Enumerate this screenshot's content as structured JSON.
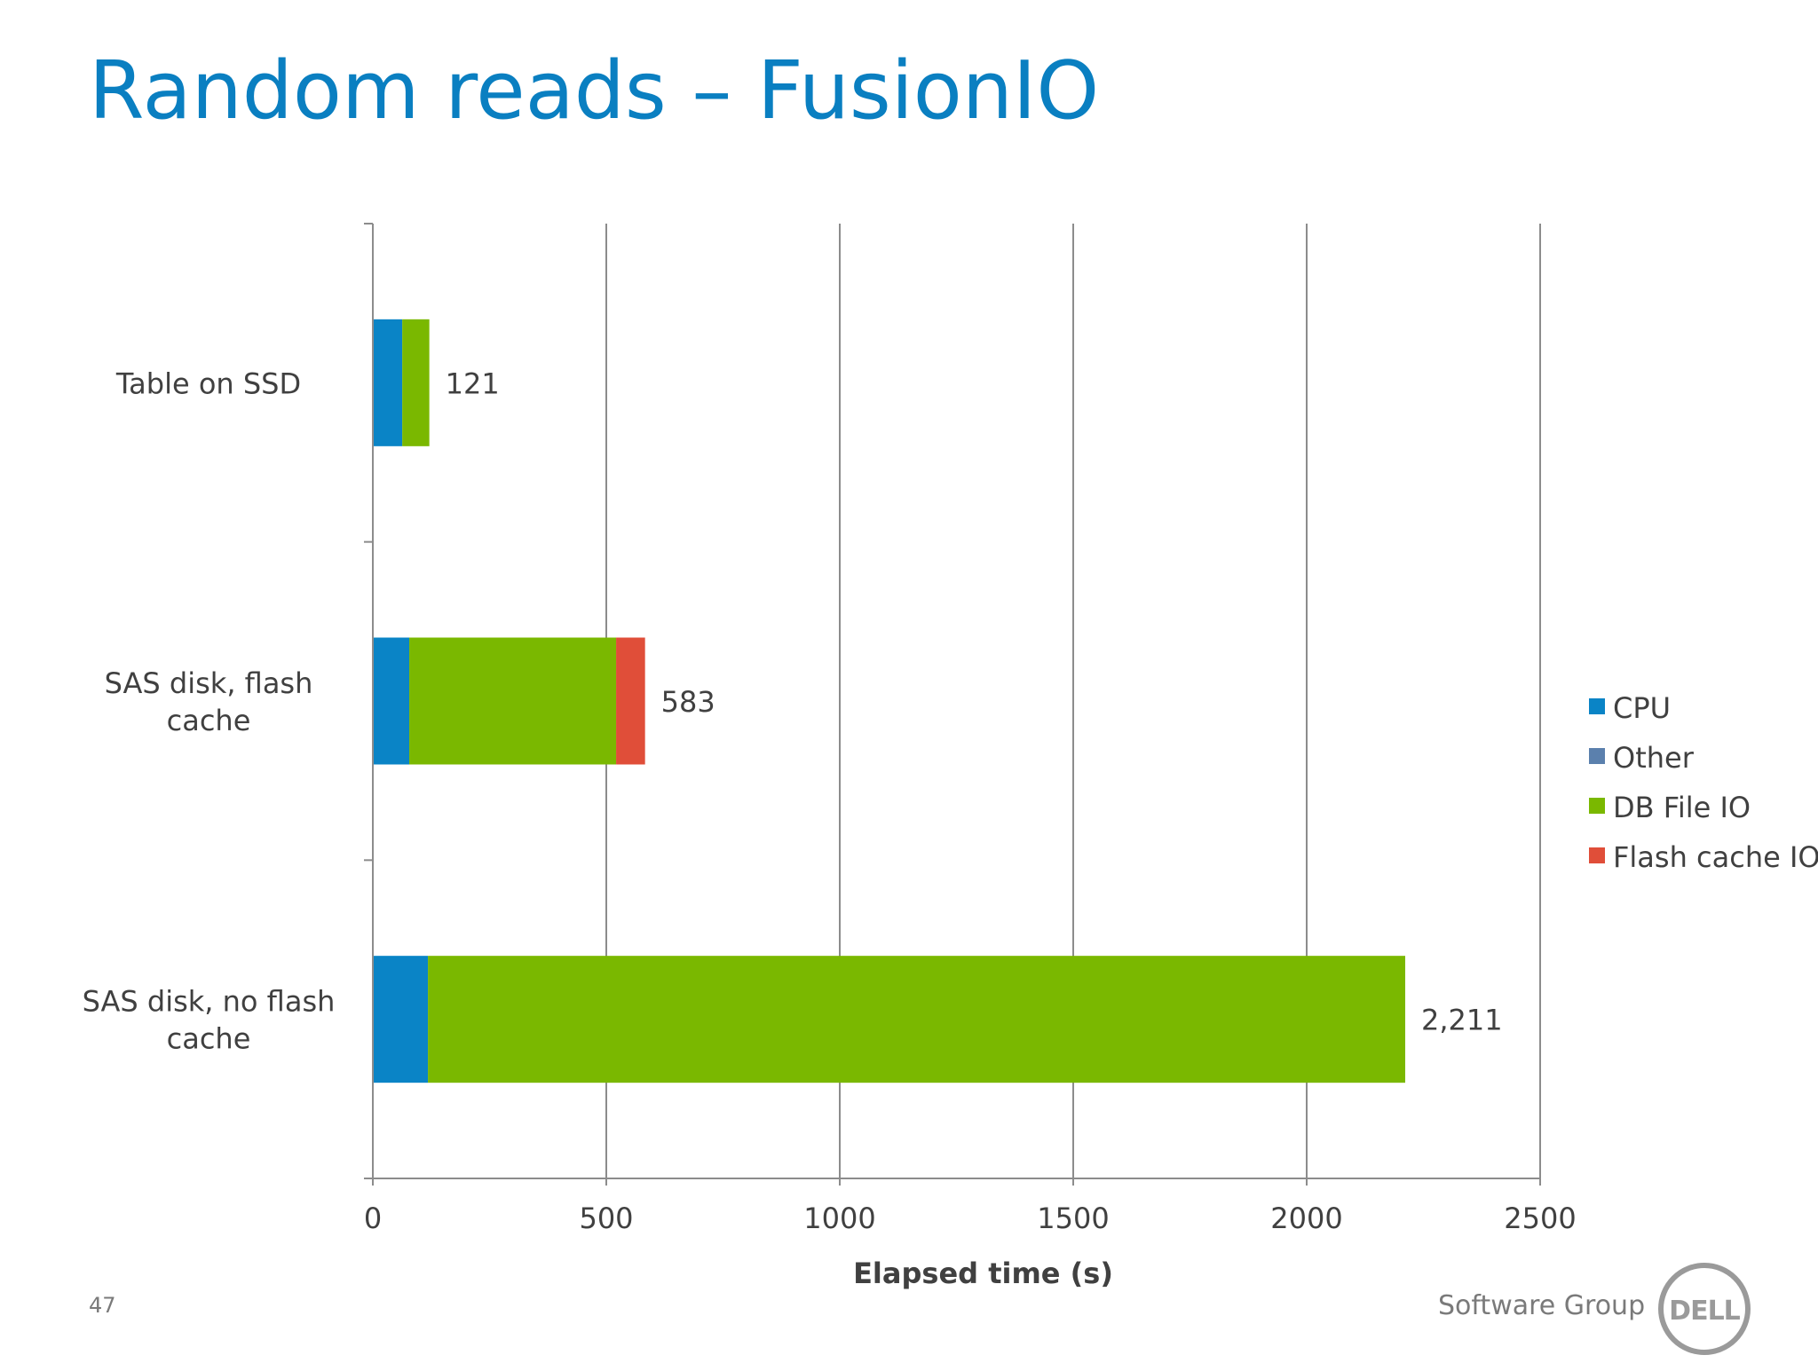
{
  "slide": {
    "title": "Random reads – FusionIO",
    "page_number": "47",
    "brand": "Software Group",
    "logo_text": "DELL"
  },
  "colors": {
    "title": "#0a7fc1",
    "cpu": "#0a84c6",
    "other": "#5b80ad",
    "db_file_io": "#7ab800",
    "flash_cache_io": "#e04e39",
    "grid": "#8c8c8c"
  },
  "chart_data": {
    "type": "bar",
    "orientation": "horizontal",
    "stacked": true,
    "xlabel": "Elapsed time (s)",
    "xlim": [
      0,
      2500
    ],
    "xticks": [
      0,
      500,
      1000,
      1500,
      2000,
      2500
    ],
    "grid": true,
    "legend_position": "right",
    "categories": [
      "Table on SSD",
      "SAS disk, flash cache",
      "SAS disk, no flash cache"
    ],
    "series": [
      {
        "name": "CPU",
        "color": "#0a84c6",
        "values": [
          63,
          78,
          118
        ]
      },
      {
        "name": "Other",
        "color": "#5b80ad",
        "values": [
          0,
          0,
          0
        ]
      },
      {
        "name": "DB File IO",
        "color": "#7ab800",
        "values": [
          58,
          443,
          2093
        ]
      },
      {
        "name": "Flash cache IO",
        "color": "#e04e39",
        "values": [
          0,
          62,
          0
        ]
      }
    ],
    "total_labels": [
      "121",
      "583",
      "2,211"
    ]
  }
}
